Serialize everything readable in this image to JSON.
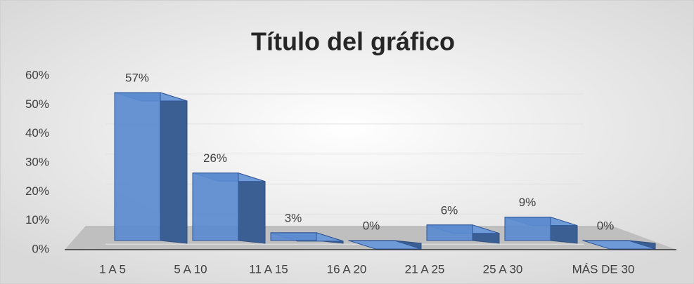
{
  "chart_data": {
    "type": "bar3d",
    "title": "Título del gráfico",
    "categories": [
      "1 A 5",
      "5 A 10",
      "11 A 15",
      "16 A 20",
      "21 A 25",
      "25 A 30",
      "MÁS DE 30"
    ],
    "values": [
      57,
      26,
      3,
      0,
      6,
      9,
      0
    ],
    "value_labels": [
      "57%",
      "26%",
      "3%",
      "0%",
      "6%",
      "9%",
      "0%"
    ],
    "color": "#5b8bd0",
    "ylim": [
      0,
      60
    ],
    "yticks": [
      {
        "value": 0,
        "label": "0%"
      },
      {
        "value": 10,
        "label": "10%"
      },
      {
        "value": 20,
        "label": "20%"
      },
      {
        "value": 30,
        "label": "30%"
      },
      {
        "value": 40,
        "label": "40%"
      },
      {
        "value": 50,
        "label": "50%"
      },
      {
        "value": 60,
        "label": "60%"
      }
    ],
    "grid": true
  }
}
